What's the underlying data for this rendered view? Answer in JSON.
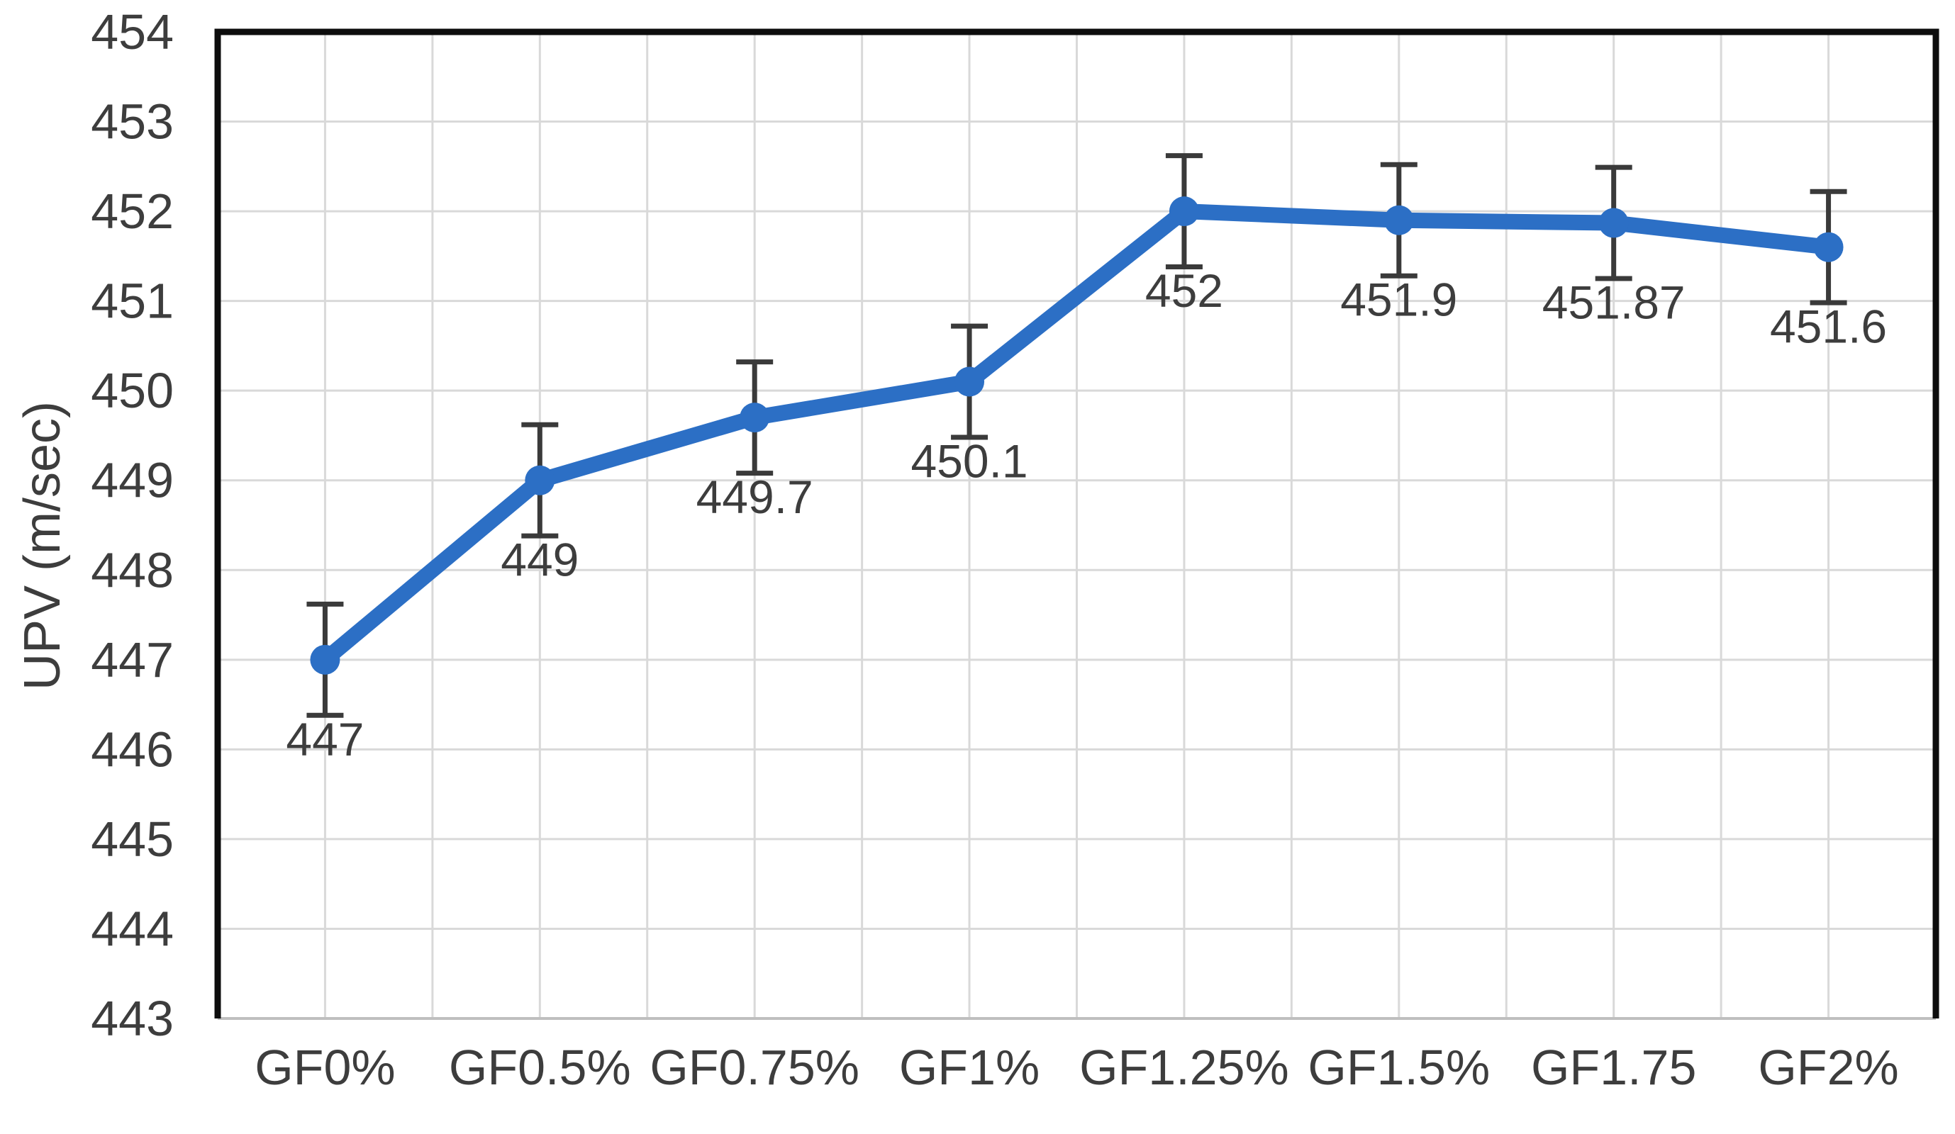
{
  "chart_data": {
    "type": "line",
    "title": "",
    "xlabel": "",
    "ylabel": "UPV (m/sec)",
    "categories": [
      "GF0%",
      "GF0.5%",
      "GF0.75%",
      "GF1%",
      "GF1.25%",
      "GF1.5%",
      "GF1.75",
      "GF2%"
    ],
    "series": [
      {
        "name": "UPV",
        "values": [
          447,
          449,
          449.7,
          450.1,
          452,
          451.9,
          451.87,
          451.6
        ],
        "point_labels": [
          "447",
          "449",
          "449.7",
          "450.1",
          "452",
          "451.9",
          "451.87",
          "451.6"
        ],
        "error_bars": {
          "plus": 0.62,
          "minus": 0.62
        }
      }
    ],
    "ylim": [
      443,
      454
    ],
    "ytick_step": 1,
    "ytick_labels": [
      "443",
      "444",
      "445",
      "446",
      "447",
      "448",
      "449",
      "450",
      "451",
      "452",
      "453",
      "454"
    ],
    "legend": "none",
    "grid": {
      "horizontal": true,
      "vertical": true,
      "vertical_lines_per_category": 2
    },
    "marker": "circle",
    "colors": {
      "line": "#2c6fc5",
      "marker": "#2c6fc5",
      "error_bar": "#3a3a3a",
      "gridline": "#d9d9d9",
      "bottom_axis": "#bfbfbf",
      "axis_border": "#0d0d0d",
      "tick_text": "#3d3d3d",
      "label_text": "#3d3d3d"
    }
  }
}
